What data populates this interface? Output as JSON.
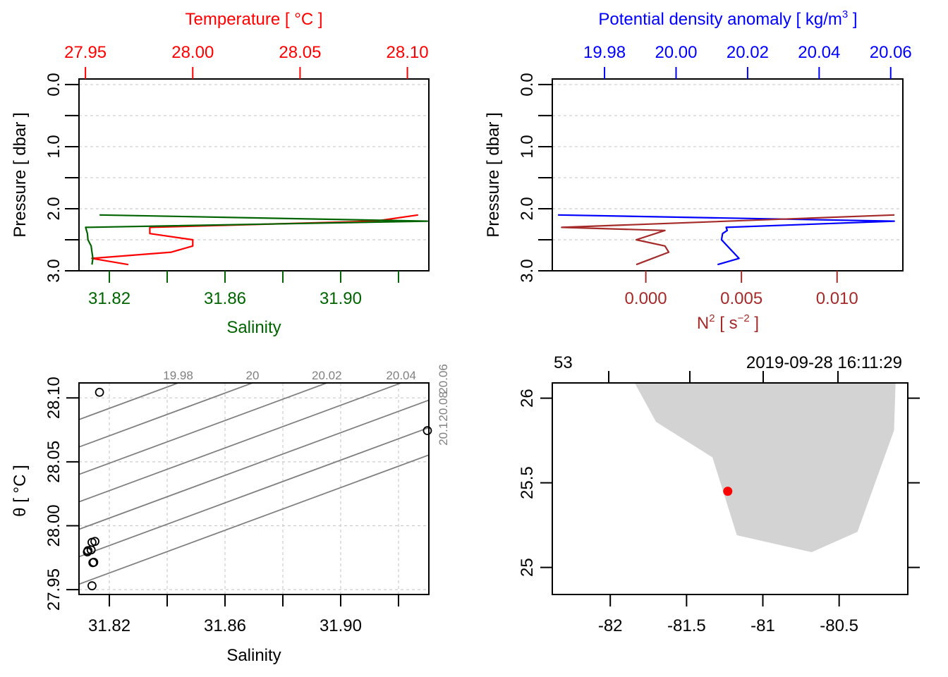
{
  "chart_data": [
    {
      "id": "profile_TS",
      "type": "line",
      "top_axis": {
        "label": "Temperature [ °C ]",
        "color": "#ff0000",
        "ticks": [
          27.95,
          28.0,
          28.05,
          28.1
        ],
        "tick_labels": [
          "27.95",
          "28.00",
          "28.05",
          "28.10"
        ],
        "range": [
          27.947,
          28.11
        ]
      },
      "bottom_axis": {
        "label": "Salinity",
        "color": "#006400",
        "ticks": [
          31.82,
          31.84,
          31.86,
          31.88,
          31.9,
          31.92
        ],
        "tick_labels": [
          "31.82",
          "",
          "31.86",
          "",
          "31.90",
          ""
        ],
        "range": [
          31.8095,
          31.9305
        ]
      },
      "y_axis": {
        "label": "Pressure [ dbar ]",
        "ticks": [
          0.0,
          0.5,
          1.0,
          1.5,
          2.0,
          2.5,
          3.0
        ],
        "tick_labels": [
          "0.0",
          "",
          "1.0",
          "",
          "2.0",
          "",
          "3.0"
        ],
        "range": [
          3.0,
          -0.09
        ],
        "inverted": true
      },
      "grid": true,
      "series": [
        {
          "name": "Temperature",
          "color": "#ff0000",
          "pressure": [
            2.1,
            2.2,
            2.3,
            2.4,
            2.5,
            2.6,
            2.7,
            2.8,
            2.9
          ],
          "values": [
            28.105,
            28.085,
            27.98,
            27.98,
            28.0,
            28.0,
            27.99,
            27.953,
            27.97
          ]
        },
        {
          "name": "Salinity",
          "color": "#006400",
          "pressure": [
            2.1,
            2.2,
            2.3,
            2.4,
            2.5,
            2.6,
            2.7,
            2.8,
            2.9
          ],
          "values": [
            31.8166,
            31.93,
            31.8118,
            31.8124,
            31.8126,
            31.8137,
            31.814,
            31.8143,
            31.814
          ]
        }
      ]
    },
    {
      "id": "profile_density",
      "type": "line",
      "top_axis": {
        "label": "Potential density anomaly [ kg/m3 ]",
        "color": "#0000ff",
        "ticks": [
          19.98,
          20.0,
          20.02,
          20.04,
          20.06
        ],
        "tick_labels": [
          "19.98",
          "20.00",
          "20.02",
          "20.04",
          "20.06"
        ],
        "range": [
          19.9654,
          20.0634
        ]
      },
      "bottom_axis": {
        "label": "N2 [ s-2 ]",
        "color": "#a52a2a",
        "ticks": [
          0.0,
          0.005,
          0.01
        ],
        "tick_labels": [
          "0.000",
          "0.005",
          "0.010"
        ],
        "range": [
          -0.00489,
          0.01344
        ]
      },
      "y_axis": {
        "label": "Pressure [ dbar ]",
        "ticks": [
          0.0,
          0.5,
          1.0,
          1.5,
          2.0,
          2.5,
          3.0
        ],
        "tick_labels": [
          "0.0",
          "",
          "1.0",
          "",
          "2.0",
          "",
          "3.0"
        ],
        "range": [
          3.0,
          -0.09
        ],
        "inverted": true
      },
      "grid": true,
      "series": [
        {
          "name": "Potential density anomaly",
          "color": "#0000ff",
          "pressure": [
            2.1,
            2.2,
            2.3,
            2.35,
            2.4,
            2.5,
            2.8,
            2.9
          ],
          "values": [
            19.967,
            20.061,
            20.014,
            20.0143,
            20.013,
            20.0127,
            20.0176,
            20.0116
          ]
        },
        {
          "name": "N2",
          "color": "#a52a2a",
          "pressure": [
            2.1,
            2.3,
            2.35,
            2.5,
            2.6,
            2.7,
            2.9
          ],
          "values": [
            0.013,
            -0.0044,
            0.001,
            -0.0005,
            0.001,
            0.0012,
            -0.0005
          ]
        }
      ]
    },
    {
      "id": "ts_diagram",
      "type": "scatter",
      "xlabel": "Salinity",
      "ylabel": "θ [ °C ]",
      "x_ticks": [
        31.82,
        31.84,
        31.86,
        31.88,
        31.9,
        31.92
      ],
      "x_tick_labels": [
        "31.82",
        "",
        "31.86",
        "",
        "31.90",
        ""
      ],
      "y_ticks": [
        27.95,
        28.0,
        28.05,
        28.1
      ],
      "y_tick_labels": [
        "27.95",
        "28.00",
        "28.05",
        "28.10"
      ],
      "xlim": [
        31.8095,
        31.9305
      ],
      "ylim": [
        27.9462,
        28.1117
      ],
      "grid": true,
      "points": [
        {
          "x": 31.8166,
          "y": 28.1044
        },
        {
          "x": 31.93,
          "y": 28.0744
        },
        {
          "x": 31.8137,
          "y": 27.9811
        },
        {
          "x": 31.814,
          "y": 27.987
        },
        {
          "x": 31.815,
          "y": 27.9877
        },
        {
          "x": 31.8126,
          "y": 27.9805
        },
        {
          "x": 31.8124,
          "y": 27.9795
        },
        {
          "x": 31.8143,
          "y": 27.9711
        },
        {
          "x": 31.8146,
          "y": 27.9714
        },
        {
          "x": 31.814,
          "y": 27.953
        }
      ],
      "isopycnals": [
        {
          "label": "19.98",
          "position": "top",
          "value": 19.98
        },
        {
          "label": "20",
          "position": "top",
          "value": 20.0
        },
        {
          "label": "20.02",
          "position": "top",
          "value": 20.02
        },
        {
          "label": "20.04",
          "position": "top",
          "value": 20.04
        },
        {
          "label": "20.06",
          "position": "right",
          "value": 20.06
        },
        {
          "label": "20.08",
          "position": "right",
          "value": 20.08
        },
        {
          "label": "20.1",
          "position": "right",
          "value": 20.1
        }
      ],
      "isopycnal_slope_degC_per_psu": 0.835,
      "isopycnal_color": "#808080"
    },
    {
      "id": "station_map",
      "type": "scatter",
      "header_left": "53",
      "header_right": "2019-09-28 16:11:29",
      "x_ticks": [
        -82,
        -81.5,
        -81,
        -80.5
      ],
      "x_tick_labels": [
        "-82",
        "-81.5",
        "-81",
        "-80.5"
      ],
      "y_ticks": [
        25,
        25.5,
        26
      ],
      "y_tick_labels": [
        "25",
        "25.5",
        "26"
      ],
      "xlim": [
        -82.38,
        -80.05
      ],
      "ylim": [
        24.84,
        26.09
      ],
      "land_color": "#d3d3d3",
      "land_polygon": [
        [
          -81.84,
          26.09
        ],
        [
          -81.7,
          25.86
        ],
        [
          -81.33,
          25.65
        ],
        [
          -81.17,
          25.19
        ],
        [
          -80.68,
          25.09
        ],
        [
          -80.38,
          25.21
        ],
        [
          -80.14,
          25.81
        ],
        [
          -80.13,
          26.09
        ]
      ],
      "station": {
        "lon": -81.23,
        "lat": 25.45,
        "color": "#ff0000"
      }
    }
  ]
}
